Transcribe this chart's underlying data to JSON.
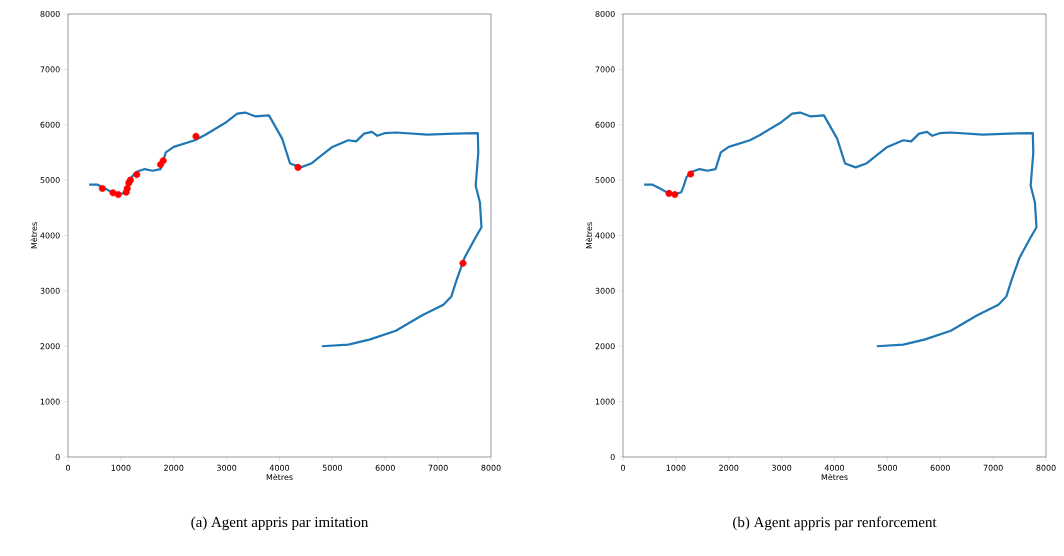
{
  "chart_data": [
    {
      "type": "line",
      "title": "(a) Agent appris par imitation",
      "xlabel": "Mètres",
      "ylabel": "Mètres",
      "xlim": [
        0,
        8000
      ],
      "ylim": [
        0,
        8000
      ],
      "xticks": [
        0,
        1000,
        2000,
        3000,
        4000,
        5000,
        6000,
        7000,
        8000
      ],
      "yticks": [
        0,
        1000,
        2000,
        3000,
        4000,
        5000,
        6000,
        7000,
        8000
      ],
      "series": [
        {
          "color": "#1f77b4",
          "x": [
            400,
            550,
            700,
            850,
            1000,
            1100,
            1150,
            1200,
            1300,
            1450,
            1600,
            1750,
            1850,
            2000,
            2400,
            2600,
            3000,
            3200,
            3350,
            3550,
            3800,
            4050,
            4200,
            4400,
            4600,
            4800,
            5000,
            5300,
            5450,
            5600,
            5750,
            5850,
            6000,
            6200,
            6800,
            7300,
            7750,
            7760,
            7710,
            7790,
            7820,
            7700,
            7500,
            7350,
            7250,
            7100,
            6700,
            6200,
            5700,
            5300,
            4800
          ],
          "values": [
            4920,
            4920,
            4850,
            4770,
            4750,
            4780,
            4900,
            5050,
            5150,
            5200,
            5170,
            5200,
            5500,
            5600,
            5720,
            5820,
            6050,
            6200,
            6220,
            6150,
            6170,
            5750,
            5300,
            5230,
            5300,
            5450,
            5600,
            5720,
            5700,
            5840,
            5870,
            5800,
            5850,
            5860,
            5820,
            5840,
            5850,
            5500,
            4900,
            4600,
            4150,
            3950,
            3600,
            3200,
            2900,
            2750,
            2560,
            2280,
            2120,
            2030,
            2000
          ]
        },
        {
          "type": "scatter",
          "color": "#ff0000",
          "marker": "circle",
          "x": [
            650,
            850,
            950,
            1100,
            1120,
            1150,
            1180,
            1300,
            1750,
            1800,
            2420,
            4350,
            7470
          ],
          "values": [
            4850,
            4770,
            4740,
            4780,
            4850,
            4950,
            5000,
            5100,
            5280,
            5350,
            5790,
            5230,
            3500
          ]
        }
      ]
    },
    {
      "type": "line",
      "title": "(b) Agent appris par renforcement",
      "xlabel": "Mètres",
      "ylabel": "Mètres",
      "xlim": [
        0,
        8000
      ],
      "ylim": [
        0,
        8000
      ],
      "xticks": [
        0,
        1000,
        2000,
        3000,
        4000,
        5000,
        6000,
        7000,
        8000
      ],
      "yticks": [
        0,
        1000,
        2000,
        3000,
        4000,
        5000,
        6000,
        7000,
        8000
      ],
      "series": [
        {
          "color": "#1f77b4",
          "x": [
            400,
            550,
            700,
            850,
            1000,
            1100,
            1150,
            1200,
            1300,
            1450,
            1600,
            1750,
            1850,
            2000,
            2400,
            2600,
            3000,
            3200,
            3350,
            3550,
            3800,
            4050,
            4200,
            4400,
            4600,
            4800,
            5000,
            5300,
            5450,
            5600,
            5750,
            5850,
            6000,
            6200,
            6800,
            7300,
            7750,
            7760,
            7710,
            7790,
            7820,
            7700,
            7500,
            7350,
            7250,
            7100,
            6700,
            6200,
            5700,
            5300,
            4800
          ],
          "values": [
            4920,
            4920,
            4850,
            4770,
            4750,
            4780,
            4900,
            5050,
            5150,
            5200,
            5170,
            5200,
            5500,
            5600,
            5720,
            5820,
            6050,
            6200,
            6220,
            6150,
            6170,
            5750,
            5300,
            5230,
            5300,
            5450,
            5600,
            5720,
            5700,
            5840,
            5870,
            5800,
            5850,
            5860,
            5820,
            5840,
            5850,
            5500,
            4900,
            4600,
            4150,
            3950,
            3600,
            3200,
            2900,
            2750,
            2560,
            2280,
            2120,
            2030,
            2000
          ]
        },
        {
          "type": "scatter",
          "color": "#ff0000",
          "marker": "circle",
          "x": [
            870,
            980,
            1280
          ],
          "values": [
            4760,
            4740,
            5110
          ]
        }
      ]
    }
  ]
}
